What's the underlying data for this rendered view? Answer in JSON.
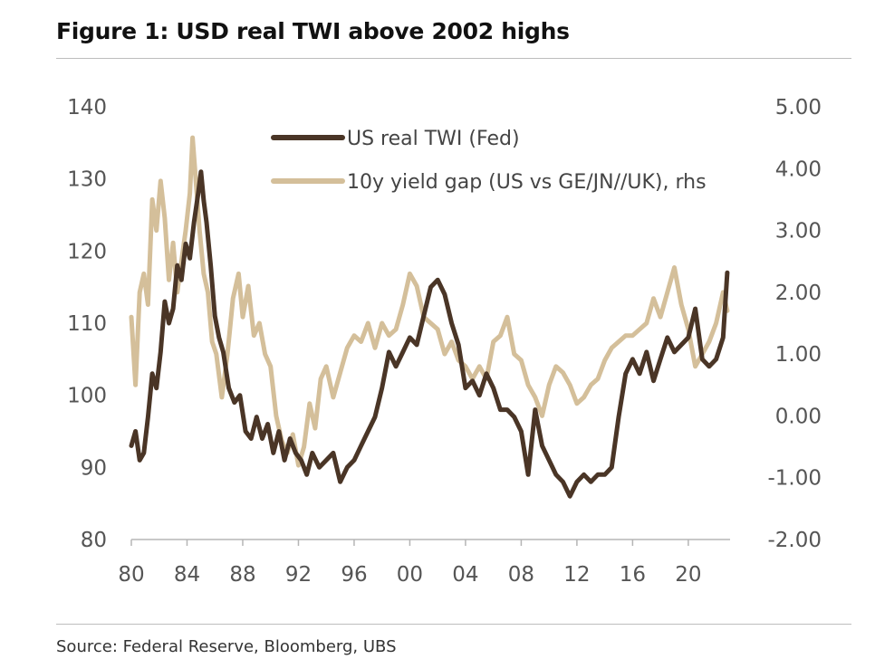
{
  "figure": {
    "title": "Figure 1: USD real TWI above 2002 highs",
    "source": "Source: Federal Reserve, Bloomberg, UBS"
  },
  "chart_data": {
    "type": "line",
    "title": "Figure 1: USD real TWI above 2002 highs",
    "xlabel": "",
    "ylabel": "",
    "x_tick_labels": [
      "80",
      "84",
      "88",
      "92",
      "96",
      "00",
      "04",
      "08",
      "12",
      "16",
      "20"
    ],
    "x_tick_years": [
      1980,
      1984,
      1988,
      1992,
      1996,
      2000,
      2004,
      2008,
      2012,
      2016,
      2020
    ],
    "y_left_ticks": [
      80,
      90,
      100,
      110,
      120,
      130,
      140
    ],
    "y_left_lim": [
      80,
      140
    ],
    "y_right_tick_labels": [
      "-2.00",
      "-1.00",
      "0.00",
      "1.00",
      "2.00",
      "3.00",
      "4.00",
      "5.00"
    ],
    "y_right_ticks": [
      -2,
      -1,
      0,
      1,
      2,
      3,
      4,
      5
    ],
    "y_right_lim": [
      -2,
      5
    ],
    "x_lim": [
      1980,
      2023
    ],
    "legend_position": "top-center",
    "grid": false,
    "series": [
      {
        "name": "US real TWI (Fed)",
        "axis": "left",
        "color": "#4a3526",
        "x": [
          1980.0,
          1980.3,
          1980.6,
          1980.9,
          1981.2,
          1981.5,
          1981.8,
          1982.1,
          1982.4,
          1982.7,
          1983.0,
          1983.3,
          1983.6,
          1983.9,
          1984.2,
          1984.5,
          1984.8,
          1985.0,
          1985.2,
          1985.4,
          1985.7,
          1986.0,
          1986.3,
          1986.6,
          1987.0,
          1987.4,
          1987.8,
          1988.2,
          1988.6,
          1989.0,
          1989.4,
          1989.8,
          1990.2,
          1990.6,
          1991.0,
          1991.4,
          1991.8,
          1992.2,
          1992.6,
          1993.0,
          1993.5,
          1994.0,
          1994.5,
          1995.0,
          1995.5,
          1996.0,
          1996.5,
          1997.0,
          1997.5,
          1998.0,
          1998.5,
          1999.0,
          1999.5,
          2000.0,
          2000.5,
          2001.0,
          2001.5,
          2002.0,
          2002.5,
          2003.0,
          2003.5,
          2004.0,
          2004.5,
          2005.0,
          2005.5,
          2006.0,
          2006.5,
          2007.0,
          2007.5,
          2008.0,
          2008.5,
          2009.0,
          2009.5,
          2010.0,
          2010.5,
          2011.0,
          2011.5,
          2012.0,
          2012.5,
          2013.0,
          2013.5,
          2014.0,
          2014.5,
          2015.0,
          2015.5,
          2016.0,
          2016.5,
          2017.0,
          2017.5,
          2018.0,
          2018.5,
          2019.0,
          2019.5,
          2020.0,
          2020.5,
          2021.0,
          2021.5,
          2022.0,
          2022.5,
          2022.8
        ],
        "values": [
          93,
          95,
          91,
          92,
          97,
          103,
          101,
          106,
          113,
          110,
          112,
          118,
          116,
          121,
          119,
          124,
          128,
          131,
          127,
          124,
          118,
          111,
          108,
          106,
          101,
          99,
          100,
          95,
          94,
          97,
          94,
          96,
          92,
          95,
          91,
          94,
          92,
          91,
          89,
          92,
          90,
          91,
          92,
          88,
          90,
          91,
          93,
          95,
          97,
          101,
          106,
          104,
          106,
          108,
          107,
          111,
          115,
          116,
          114,
          110,
          107,
          101,
          102,
          100,
          103,
          101,
          98,
          98,
          97,
          95,
          89,
          98,
          93,
          91,
          89,
          88,
          86,
          88,
          89,
          88,
          89,
          89,
          90,
          97,
          103,
          105,
          103,
          106,
          102,
          105,
          108,
          106,
          107,
          108,
          112,
          105,
          104,
          105,
          108,
          117
        ],
        "data_labels": []
      },
      {
        "name": "10y yield gap (US vs GE/JN//UK), rhs",
        "axis": "right",
        "color": "#d4bf9a",
        "x": [
          1980.0,
          1980.3,
          1980.6,
          1980.9,
          1981.2,
          1981.5,
          1981.8,
          1982.1,
          1982.4,
          1982.7,
          1983.0,
          1983.3,
          1983.6,
          1983.9,
          1984.2,
          1984.4,
          1984.6,
          1984.9,
          1985.2,
          1985.5,
          1985.8,
          1986.1,
          1986.5,
          1986.9,
          1987.3,
          1987.7,
          1988.0,
          1988.4,
          1988.8,
          1989.2,
          1989.6,
          1990.0,
          1990.4,
          1990.8,
          1991.2,
          1991.6,
          1992.0,
          1992.4,
          1992.8,
          1993.2,
          1993.6,
          1994.0,
          1994.5,
          1995.0,
          1995.5,
          1996.0,
          1996.5,
          1997.0,
          1997.5,
          1998.0,
          1998.5,
          1999.0,
          1999.5,
          2000.0,
          2000.5,
          2001.0,
          2001.5,
          2002.0,
          2002.5,
          2003.0,
          2003.5,
          2004.0,
          2004.5,
          2005.0,
          2005.5,
          2006.0,
          2006.5,
          2007.0,
          2007.5,
          2008.0,
          2008.5,
          2009.0,
          2009.5,
          2010.0,
          2010.5,
          2011.0,
          2011.5,
          2012.0,
          2012.5,
          2013.0,
          2013.5,
          2014.0,
          2014.5,
          2015.0,
          2015.5,
          2016.0,
          2016.5,
          2017.0,
          2017.5,
          2018.0,
          2018.5,
          2019.0,
          2019.5,
          2020.0,
          2020.5,
          2021.0,
          2021.5,
          2022.0,
          2022.5,
          2022.8
        ],
        "values": [
          1.6,
          0.5,
          2.0,
          2.3,
          1.8,
          3.5,
          3.0,
          3.8,
          3.2,
          2.2,
          2.8,
          2.0,
          2.5,
          3.0,
          3.6,
          4.5,
          3.9,
          3.0,
          2.3,
          2.0,
          1.2,
          1.0,
          0.3,
          1.0,
          1.9,
          2.3,
          1.6,
          2.1,
          1.3,
          1.5,
          1.0,
          0.8,
          0.0,
          -0.4,
          -0.6,
          -0.3,
          -0.8,
          -0.5,
          0.2,
          -0.2,
          0.6,
          0.8,
          0.3,
          0.7,
          1.1,
          1.3,
          1.2,
          1.5,
          1.1,
          1.5,
          1.3,
          1.4,
          1.8,
          2.3,
          2.1,
          1.6,
          1.5,
          1.4,
          1.0,
          1.2,
          0.9,
          0.8,
          0.6,
          0.8,
          0.6,
          1.2,
          1.3,
          1.6,
          1.0,
          0.9,
          0.5,
          0.3,
          0.0,
          0.5,
          0.8,
          0.7,
          0.5,
          0.2,
          0.3,
          0.5,
          0.6,
          0.9,
          1.1,
          1.2,
          1.3,
          1.3,
          1.4,
          1.5,
          1.9,
          1.6,
          2.0,
          2.4,
          1.8,
          1.4,
          0.8,
          1.0,
          1.2,
          1.5,
          2.0,
          1.7
        ],
        "data_labels": []
      }
    ]
  }
}
